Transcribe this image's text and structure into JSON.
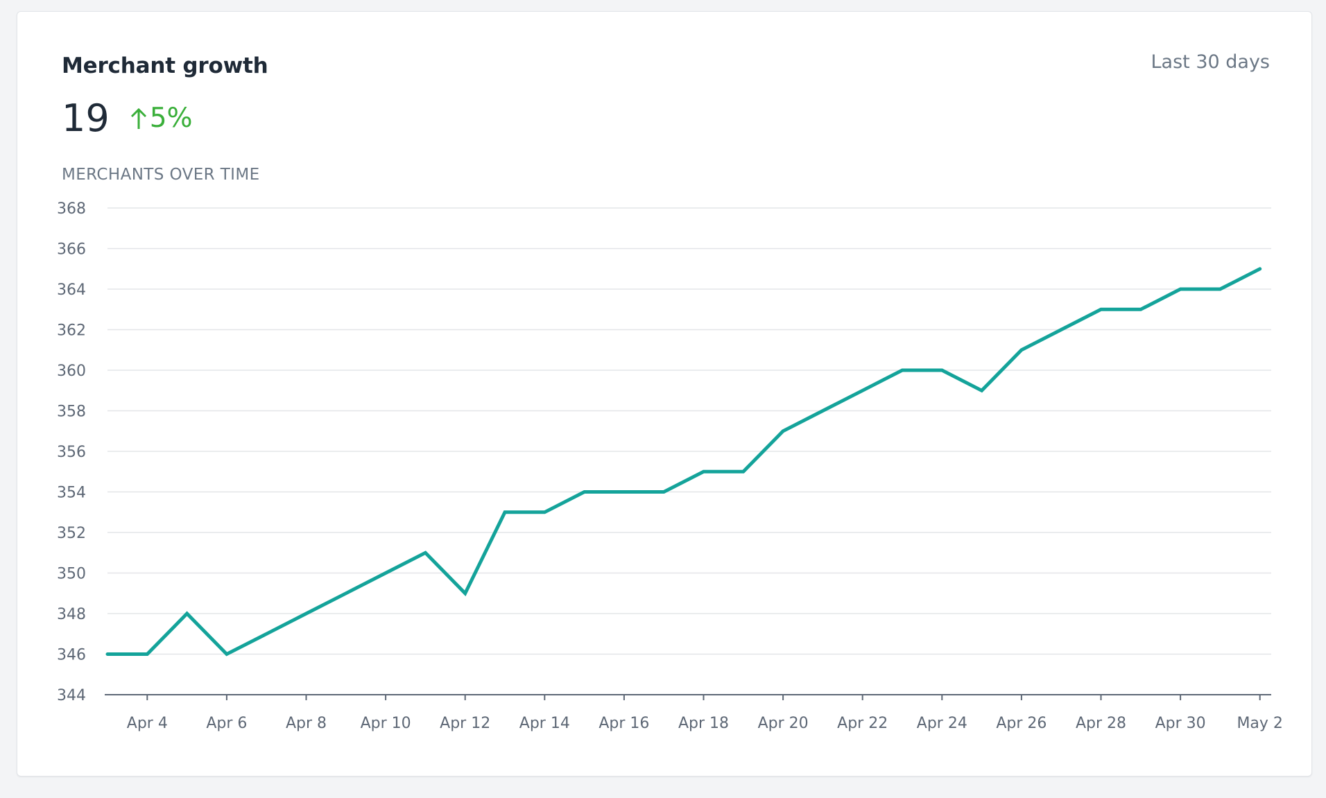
{
  "card": {
    "title": "Merchant growth",
    "range_label": "Last 30 days",
    "metric_value": "19",
    "delta": "5%",
    "delta_direction": "up",
    "subtitle": "MERCHANTS OVER TIME"
  },
  "colors": {
    "line": "#14a39a",
    "delta": "#3aaf3a",
    "grid": "#e3e5e8",
    "axis": "#5d6775"
  },
  "chart_data": {
    "type": "line",
    "title": "",
    "xlabel": "",
    "ylabel": "",
    "ylim": [
      344,
      368
    ],
    "yticks": [
      344,
      346,
      348,
      350,
      352,
      354,
      356,
      358,
      360,
      362,
      364,
      366,
      368
    ],
    "grid": true,
    "x": [
      "Apr 3",
      "Apr 4",
      "Apr 5",
      "Apr 6",
      "Apr 7",
      "Apr 8",
      "Apr 9",
      "Apr 10",
      "Apr 11",
      "Apr 12",
      "Apr 13",
      "Apr 14",
      "Apr 15",
      "Apr 16",
      "Apr 17",
      "Apr 18",
      "Apr 19",
      "Apr 20",
      "Apr 21",
      "Apr 22",
      "Apr 23",
      "Apr 24",
      "Apr 25",
      "Apr 26",
      "Apr 27",
      "Apr 28",
      "Apr 29",
      "Apr 30",
      "May 1",
      "May 2"
    ],
    "xtick_labels": [
      "Apr 4",
      "Apr 6",
      "Apr 8",
      "Apr 10",
      "Apr 12",
      "Apr 14",
      "Apr 16",
      "Apr 18",
      "Apr 20",
      "Apr 22",
      "Apr 24",
      "Apr 26",
      "Apr 28",
      "Apr 30",
      "May 2"
    ],
    "series": [
      {
        "values": [
          346,
          346,
          348,
          346,
          347,
          348,
          349,
          350,
          351,
          349,
          353,
          353,
          354,
          354,
          354,
          355,
          355,
          357,
          358,
          359,
          360,
          360,
          359,
          361,
          362,
          363,
          363,
          364,
          364,
          365
        ]
      }
    ]
  }
}
